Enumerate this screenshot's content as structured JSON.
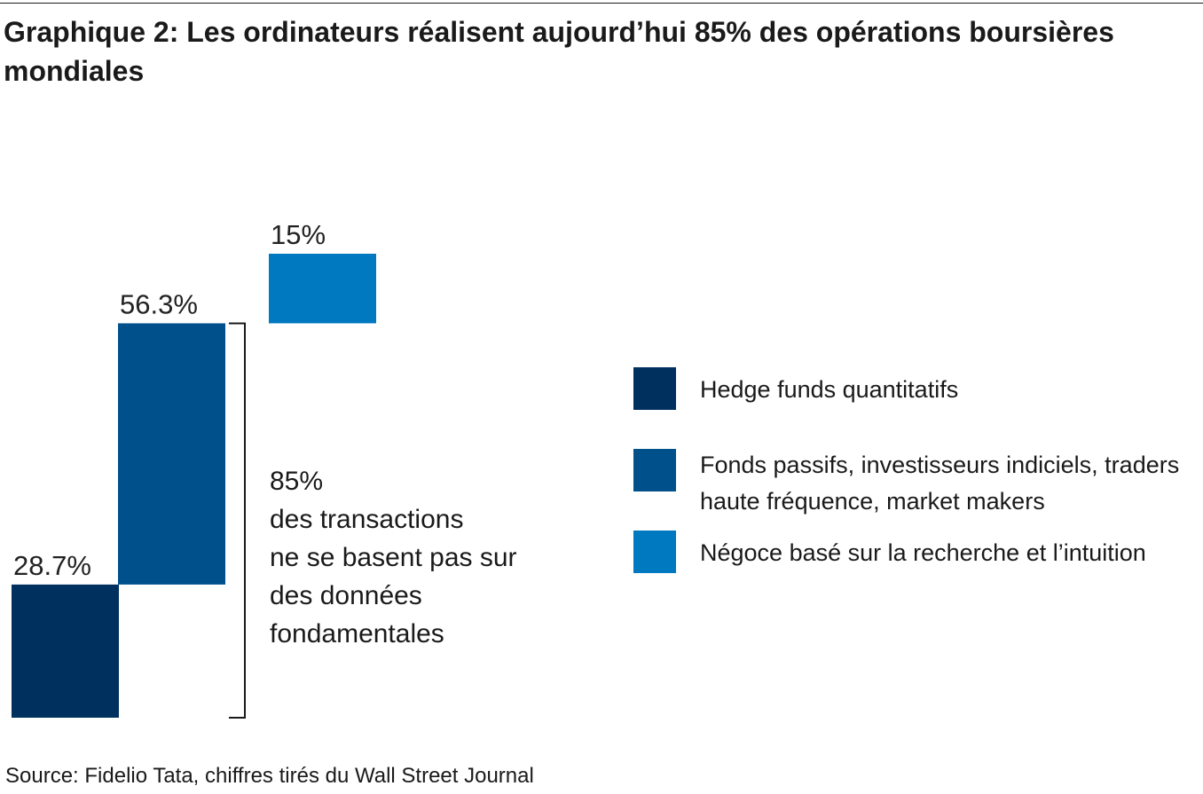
{
  "title": "Graphique 2: Les ordinateurs réalisent aujourd’hui 85% des opérations boursières mondiales",
  "colors": {
    "hedge_funds": "#00305e",
    "passive": "#00508c",
    "research": "#0079c1",
    "text": "#1a1a1a"
  },
  "chart_data": {
    "type": "bar",
    "subtype": "waterfall",
    "categories": [
      "Hedge funds quantitatifs",
      "Fonds passifs, investisseurs indiciels, traders haute fréquence, market makers",
      "Négoce basé sur la recherche et l’intuition"
    ],
    "values": [
      28.7,
      56.3,
      15
    ],
    "cumulative_end": [
      28.7,
      85,
      100
    ],
    "value_labels": [
      "28.7%",
      "56.3%",
      "15%"
    ],
    "ylim": [
      0,
      100
    ],
    "grid": false,
    "legend_position": "right",
    "annotation": {
      "value": "85%",
      "lines": [
        "des transactions",
        "ne se basent pas sur",
        "des données",
        "fondamentales"
      ],
      "bracket_range": [
        0,
        85
      ]
    }
  },
  "legend": {
    "items": [
      {
        "lines": [
          "Hedge funds quantitatifs"
        ],
        "color": "#00305e"
      },
      {
        "lines": [
          "Fonds passifs, investisseurs indiciels, traders",
          "haute fréquence, market makers"
        ],
        "color": "#00508c"
      },
      {
        "lines": [
          "Négoce basé sur la recherche et l’intuition"
        ],
        "color": "#0079c1"
      }
    ]
  },
  "source": "Source: Fidelio Tata, chiffres tirés du Wall Street Journal"
}
